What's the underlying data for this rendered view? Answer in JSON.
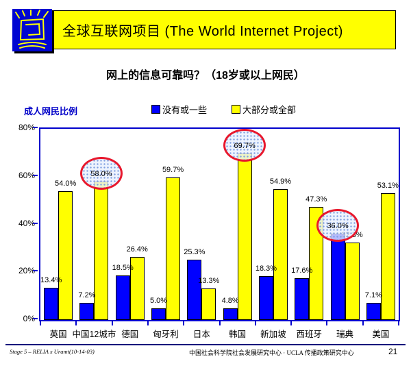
{
  "header": {
    "title": "全球互联网项目 (The World Internet Project)",
    "banner_color": "#ffff00",
    "logo_color": "#0006d2",
    "logo_stroke": "#ffff00"
  },
  "slide_title": "网上的信息可靠吗？（18岁或以上网民）",
  "chart_label": "成人网民比例",
  "chart_data": {
    "type": "bar",
    "title": "网上的信息可靠吗？（18岁或以上网民）",
    "categories": [
      "英国",
      "中国12城市",
      "德国",
      "匈牙利",
      "日本",
      "韩国",
      "新加坡",
      "西班牙",
      "瑞典",
      "美国"
    ],
    "series": [
      {
        "name": "没有或一些",
        "color": "#0000ff",
        "values": [
          13.4,
          7.2,
          18.5,
          5.0,
          25.3,
          4.8,
          18.3,
          17.6,
          36.0,
          7.1
        ]
      },
      {
        "name": "大部分或全部",
        "color": "#ffff00",
        "values": [
          54.0,
          58.0,
          26.4,
          59.7,
          13.3,
          69.7,
          54.9,
          47.3,
          32.3,
          53.1
        ]
      }
    ],
    "ylim": [
      0,
      80
    ],
    "yticks": [
      "0%",
      "20%",
      "40%",
      "60%",
      "80%"
    ],
    "grid": false,
    "legend_position": "top",
    "axis_color": "#0000cc",
    "highlight_color": "#e8182d",
    "highlights": [
      {
        "category": "中国12城市",
        "series": "大部分或全部"
      },
      {
        "category": "韩国",
        "series": "大部分或全部"
      },
      {
        "category": "瑞典",
        "series": "没有或一些"
      }
    ]
  },
  "footer": {
    "left": "Stage 5 – RELIA x Uramt(10-14-03)",
    "center": "中国社会科学院社会发展研究中心 · UCLA 传播政策研究中心",
    "page": "21"
  }
}
